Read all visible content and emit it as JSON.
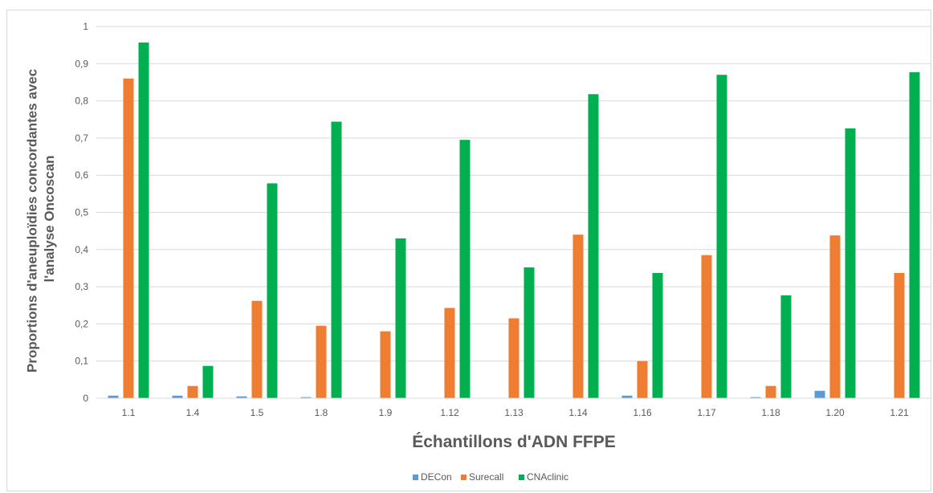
{
  "chart_data": {
    "type": "bar",
    "title": "",
    "xlabel": "Échantillons d'ADN FFPE",
    "ylabel_lines": [
      "Proportions d'aneuploïdies concordantes avec",
      "l'analyse Oncoscan"
    ],
    "ylim": [
      0,
      1
    ],
    "yticks": [
      "0",
      "0,1",
      "0,2",
      "0,3",
      "0,4",
      "0,5",
      "0,6",
      "0,7",
      "0,8",
      "0,9",
      "1"
    ],
    "grid": true,
    "legend_position": "bottom",
    "categories": [
      "1.1",
      "1.4",
      "1.5",
      "1.8",
      "1.9",
      "1.12",
      "1.13",
      "1.14",
      "1.16",
      "1.17",
      "1.18",
      "1.20",
      "1.21"
    ],
    "series": [
      {
        "name": "DECon",
        "color": "#5b9bd5",
        "values": [
          0.007,
          0.007,
          0.005,
          0.003,
          0,
          0,
          0,
          0,
          0.007,
          0,
          0.003,
          0.02,
          0
        ]
      },
      {
        "name": "Surecall",
        "color": "#ed7d31",
        "values": [
          0.86,
          0.033,
          0.262,
          0.195,
          0.18,
          0.243,
          0.215,
          0.44,
          0.1,
          0.385,
          0.033,
          0.438,
          0.337
        ]
      },
      {
        "name": "CNAclinic",
        "color": "#00b050",
        "values": [
          0.957,
          0.087,
          0.578,
          0.744,
          0.43,
          0.695,
          0.352,
          0.818,
          0.337,
          0.87,
          0.277,
          0.726,
          0.877
        ]
      }
    ]
  }
}
